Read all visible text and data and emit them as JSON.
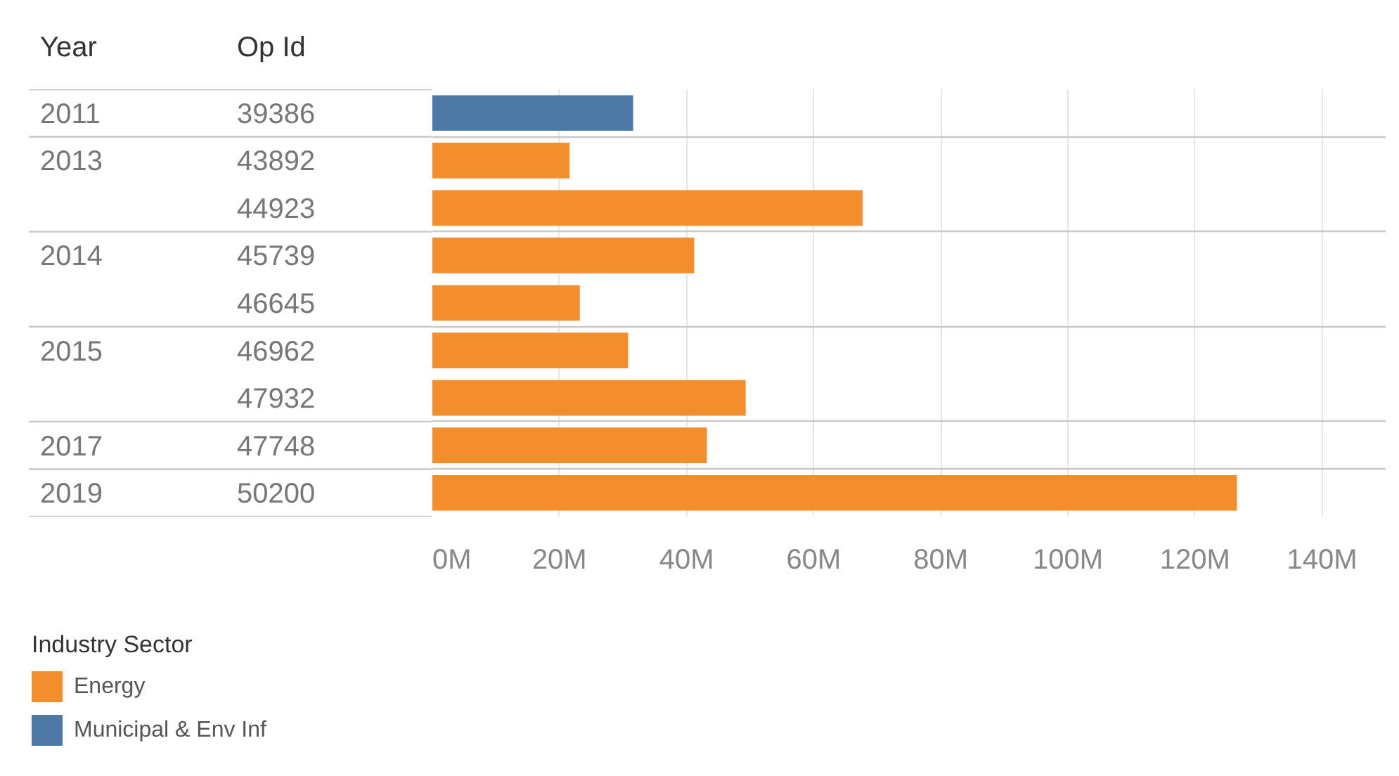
{
  "chart_data": {
    "type": "bar",
    "orientation": "horizontal",
    "ylabel": "Op Id",
    "categories": [
      "39386",
      "43892",
      "44923",
      "45739",
      "46645",
      "46962",
      "47932",
      "47748",
      "50200"
    ],
    "y2_categories": [
      "2011",
      "2013",
      null,
      "2014",
      null,
      "2015",
      null,
      "2017",
      "2019"
    ],
    "series": [
      {
        "name": "Energy",
        "color": "#f28e2b",
        "values": [
          null,
          21.6,
          67.7,
          41.2,
          23.2,
          30.8,
          49.3,
          43.2,
          126.6
        ]
      },
      {
        "name": "Municipal & Env Inf",
        "color": "#4e79a7",
        "values": [
          31.6,
          null,
          null,
          null,
          null,
          null,
          null,
          null,
          null
        ]
      }
    ],
    "xlim": [
      0,
      150
    ],
    "xticks": [
      {
        "value": 0,
        "label": "0M"
      },
      {
        "value": 20,
        "label": "20M"
      },
      {
        "value": 40,
        "label": "40M"
      },
      {
        "value": 60,
        "label": "60M"
      },
      {
        "value": 80,
        "label": "80M"
      },
      {
        "value": 100,
        "label": "100M"
      },
      {
        "value": 120,
        "label": "120M"
      },
      {
        "value": 140,
        "label": "140M"
      }
    ],
    "grid": true,
    "legend": "bottom left",
    "legend_title": "Industry Sector",
    "annotations": [
      "Year"
    ]
  }
}
